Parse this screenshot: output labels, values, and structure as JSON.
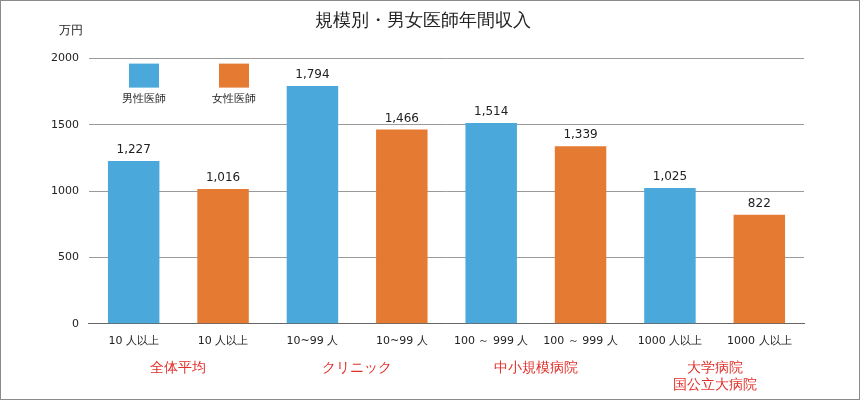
{
  "chart_data": {
    "type": "bar",
    "title": "規模別・男女医師年間収入",
    "y_label": "万円",
    "categories": [
      "10 人以上",
      "10 人以上",
      "10~99 人",
      "10~99 人",
      "100 ～ 999 人",
      "100 ～ 999 人",
      "1000 人以上",
      "1000 人以上"
    ],
    "category_groups": [
      "全体平均",
      "クリニック",
      "中小規模病院",
      [
        "大学病院",
        "国公立大病院"
      ]
    ],
    "series": [
      {
        "name": "男性医師",
        "color": "#4aa8db",
        "values": [
          1227,
          null,
          1794,
          null,
          1514,
          null,
          1025,
          null
        ],
        "value_labels": [
          "1,227",
          null,
          "1,794",
          null,
          "1,514",
          null,
          "1,025",
          null
        ]
      },
      {
        "name": "女性医師",
        "color": "#e57b32",
        "values": [
          null,
          1016,
          null,
          1466,
          null,
          1339,
          null,
          822
        ],
        "value_labels": [
          null,
          "1,016",
          null,
          "1,466",
          null,
          "1,339",
          null,
          "822"
        ]
      }
    ],
    "ylim": [
      0,
      2000
    ],
    "yticks": [
      0,
      500,
      1000,
      1500,
      2000
    ],
    "grid": true,
    "legend": "upper left",
    "data_labels": true
  }
}
